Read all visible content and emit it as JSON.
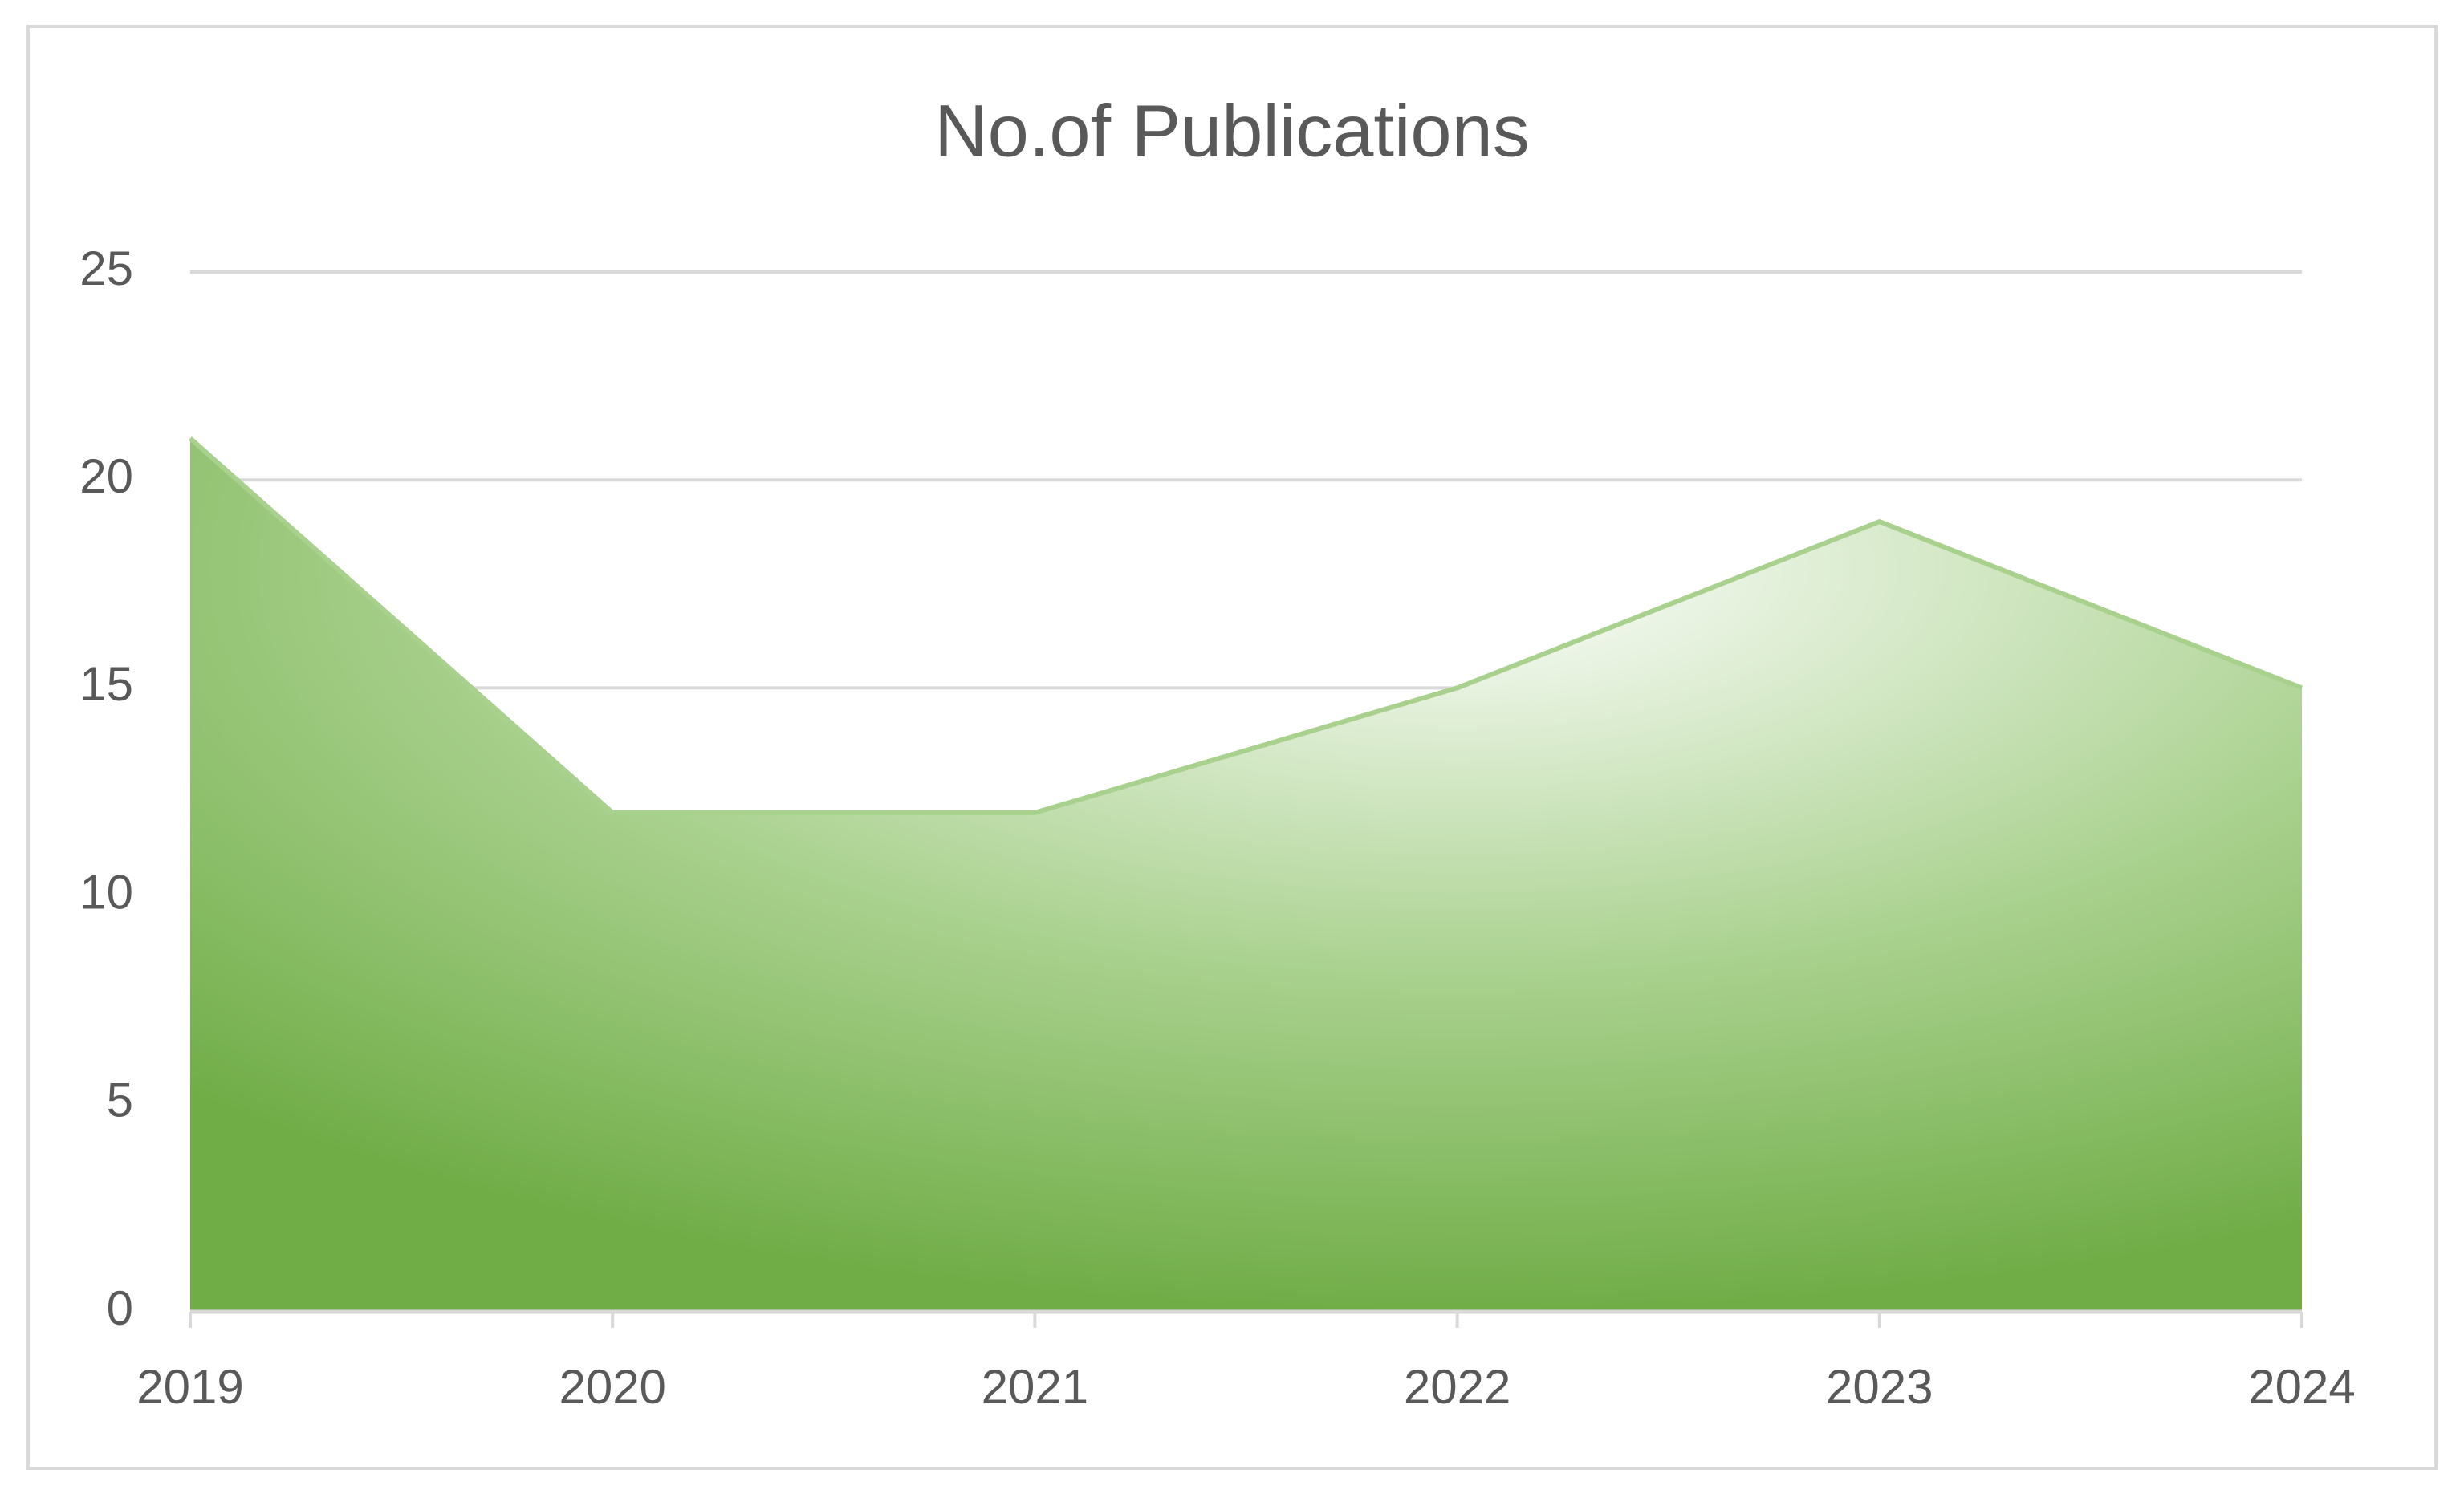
{
  "chart_data": {
    "type": "area",
    "title": "No.of Publications",
    "categories": [
      "2019",
      "2020",
      "2021",
      "2022",
      "2023",
      "2024"
    ],
    "values": [
      21,
      12,
      12,
      15,
      19,
      15
    ],
    "color": "#70ad47",
    "line_color": "#a9d18e",
    "ylim": [
      0,
      25
    ],
    "yticks": [
      0,
      5,
      10,
      15,
      20,
      25
    ],
    "grid": true
  }
}
